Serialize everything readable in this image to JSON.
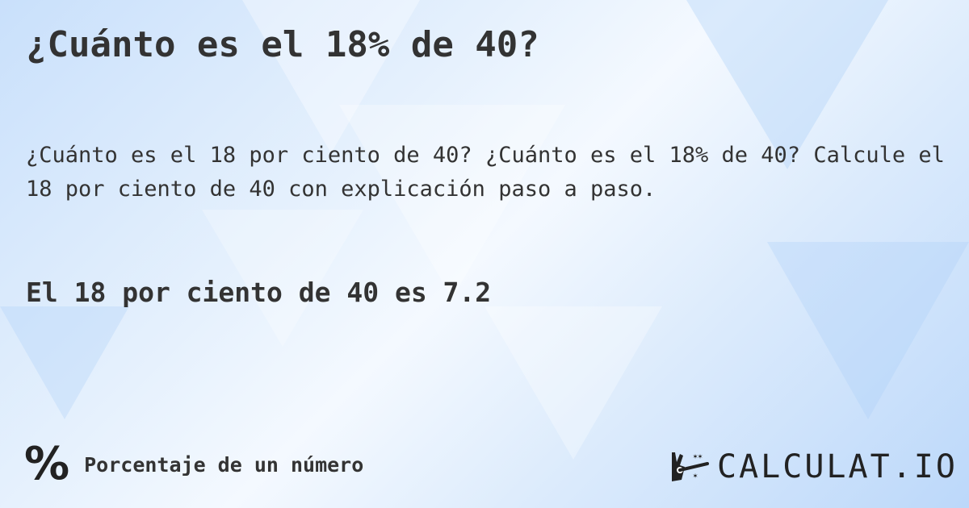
{
  "title": "¿Cuánto es el 18% de 40?",
  "description": "¿Cuánto es el 18 por ciento de 40? ¿Cuánto es el 18% de 40? Calcule el 18 por ciento de 40 con explicación paso a paso.",
  "answer": "El 18 por ciento de 40 es 7.2",
  "footer": {
    "icon": "percent-icon",
    "icon_glyph": "%",
    "category": "Porcentaje de un número"
  },
  "logo": {
    "text": "CALCULAT.IO",
    "icon": "magic-hand-wand-icon"
  },
  "colors": {
    "text": "#333333",
    "background_accent": "#bcd8fa"
  }
}
